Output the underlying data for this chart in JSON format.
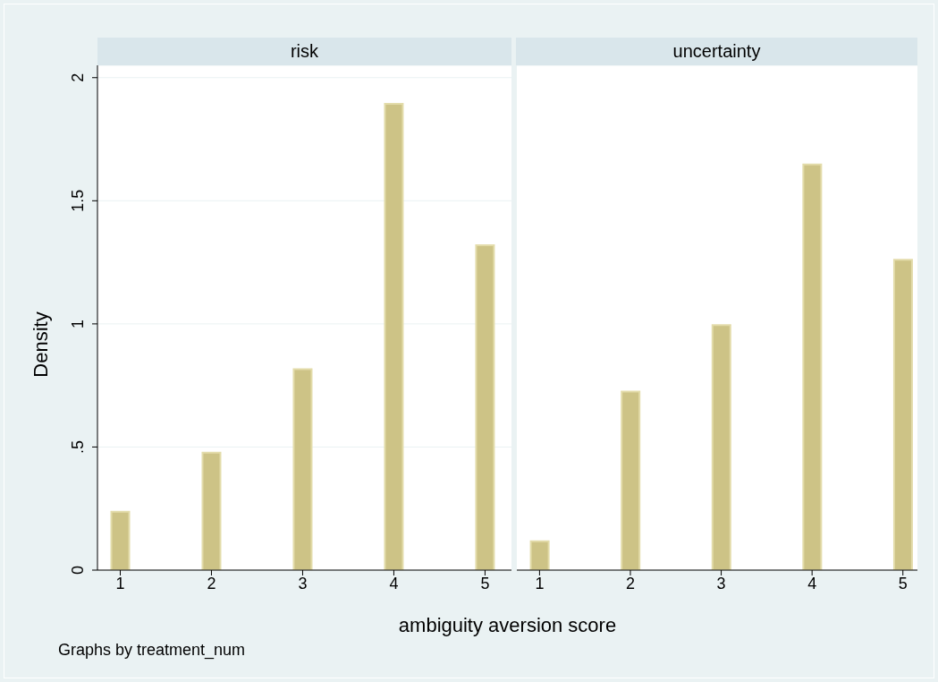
{
  "chart_data": [
    {
      "type": "bar",
      "title": "risk",
      "xlabel": "ambiguity aversion score",
      "ylabel": "Density",
      "annotations": [
        "Graphs by treatment_num"
      ],
      "x": [
        1,
        2,
        3,
        4,
        5
      ],
      "values": [
        0.237,
        0.477,
        0.816,
        1.894,
        1.319
      ],
      "color": "#cdc386",
      "xlim": [
        0.75,
        5.29
      ],
      "xticks": [
        1,
        2,
        3,
        4,
        5
      ],
      "ylim": [
        0,
        2.05
      ],
      "yticks": [
        0,
        {
          "value": 0.5,
          "label": ".5"
        },
        1,
        {
          "value": 1.5,
          "label": "1.5"
        },
        2
      ],
      "grid": "y"
    },
    {
      "type": "bar",
      "title": "uncertainty",
      "x": [
        1,
        2,
        3,
        4,
        5
      ],
      "values": [
        0.117,
        0.725,
        0.995,
        1.647,
        1.26
      ],
      "color": "#cdc386",
      "xlim": [
        0.75,
        5.16
      ],
      "xticks": [
        1,
        2,
        3,
        4,
        5
      ],
      "ylim": [
        0,
        2.05
      ],
      "yticks": [
        0,
        0.5,
        1,
        1.5,
        2
      ],
      "grid": "y",
      "tick_labels": "x"
    }
  ]
}
